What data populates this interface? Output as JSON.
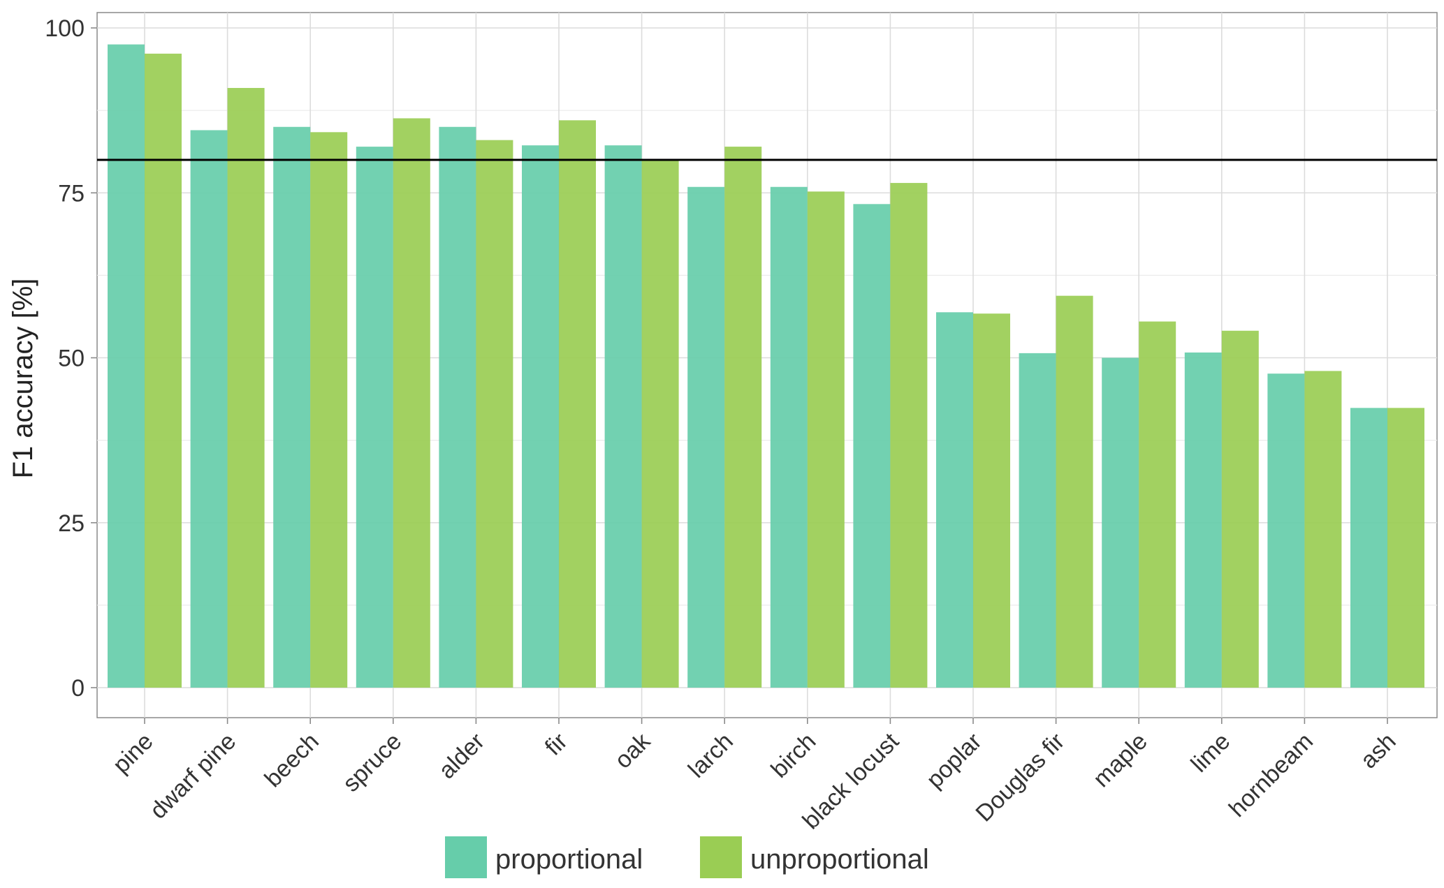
{
  "chart_data": {
    "type": "bar",
    "title": "",
    "xlabel": "",
    "ylabel": "F1 accuracy [%]",
    "ylim": [
      0,
      100
    ],
    "yticks": [
      0,
      25,
      50,
      75,
      100
    ],
    "grid": true,
    "legend_position": "bottom",
    "reference_line": {
      "y": 80,
      "color": "#000000"
    },
    "categories": [
      "pine",
      "dwarf pine",
      "beech",
      "spruce",
      "alder",
      "fir",
      "oak",
      "larch",
      "birch",
      "black locust",
      "poplar",
      "Douglas fir",
      "maple",
      "lime",
      "hornbeam",
      "ash"
    ],
    "series": [
      {
        "name": "proportional",
        "color": "#66CDAA",
        "values": [
          97.5,
          84.5,
          85,
          82,
          85,
          82.2,
          82.2,
          75.9,
          75.9,
          73.3,
          56.9,
          50.7,
          50,
          50.8,
          47.6,
          42.4
        ]
      },
      {
        "name": "unproportional",
        "color": "#9ACD54",
        "values": [
          96.1,
          90.9,
          84.2,
          86.3,
          83,
          86,
          80,
          82,
          75.2,
          76.5,
          56.7,
          59.4,
          55.5,
          54.1,
          48,
          42.4
        ]
      }
    ]
  }
}
